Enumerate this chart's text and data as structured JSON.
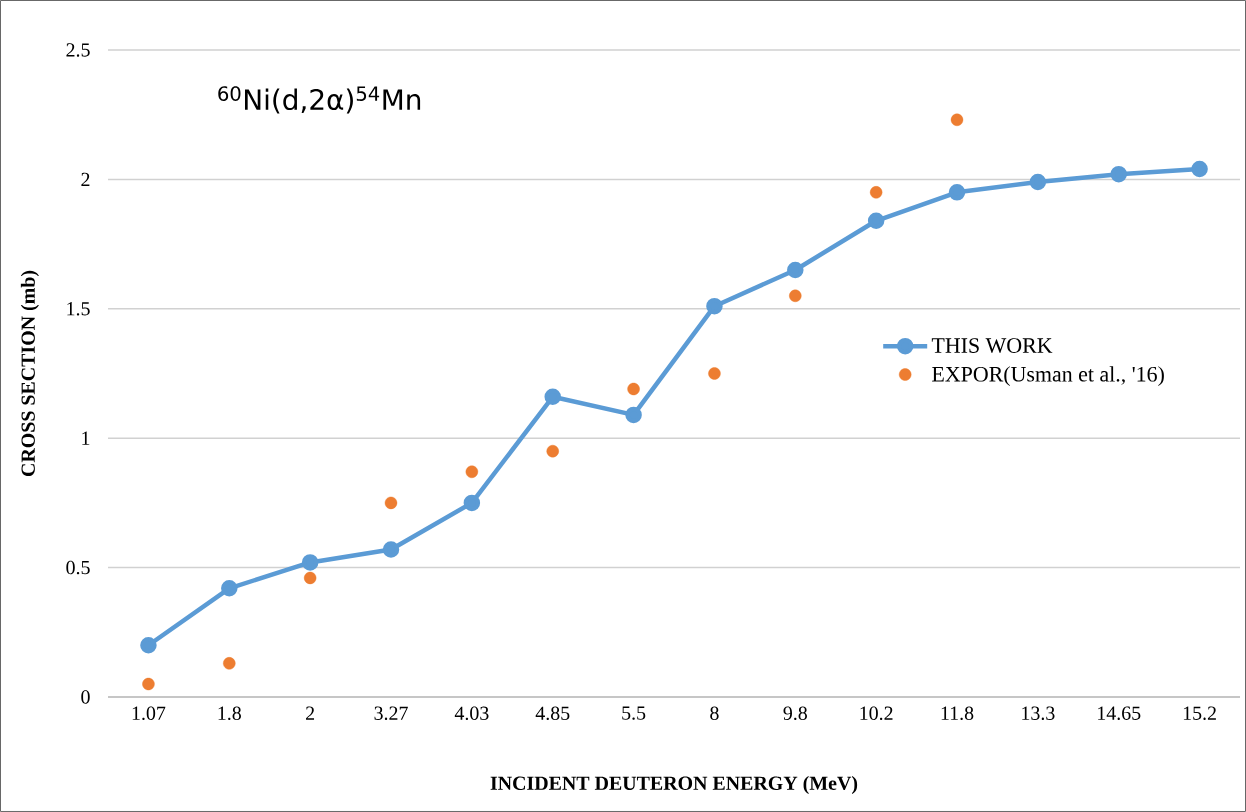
{
  "chart_data": {
    "type": "line",
    "title": "$^{60}$Ni(d,2α)$^{54}$Mn",
    "xlabel": "INCIDENT DEUTERON ENERGY (MeV)",
    "ylabel": "CROSS SECTION (mb)",
    "categories": [
      "1.07",
      "1.8",
      "2",
      "3.27",
      "4.03",
      "4.85",
      "5.5",
      "8",
      "9.8",
      "10.2",
      "11.8",
      "13.3",
      "14.65",
      "15.2"
    ],
    "series": [
      {
        "name": "THIS WORK",
        "marker": "circle",
        "color": "#5b9bd5",
        "values": [
          0.2,
          0.42,
          0.52,
          0.57,
          0.75,
          1.16,
          1.09,
          1.51,
          1.65,
          1.84,
          1.95,
          1.99,
          2.02,
          2.04
        ]
      },
      {
        "name": "EXPOR(Usman et al., '16)",
        "type": "scatter",
        "marker": "circle",
        "color": "#ed7d31",
        "values": [
          0.05,
          0.13,
          0.46,
          0.75,
          0.87,
          0.95,
          1.19,
          1.25,
          1.55,
          1.95,
          2.23,
          null,
          null,
          null
        ]
      }
    ],
    "ylim": [
      0,
      2.5
    ],
    "yticks": [
      0,
      0.5,
      1,
      1.5,
      2,
      2.5
    ],
    "grid": "y",
    "legend": "right"
  }
}
